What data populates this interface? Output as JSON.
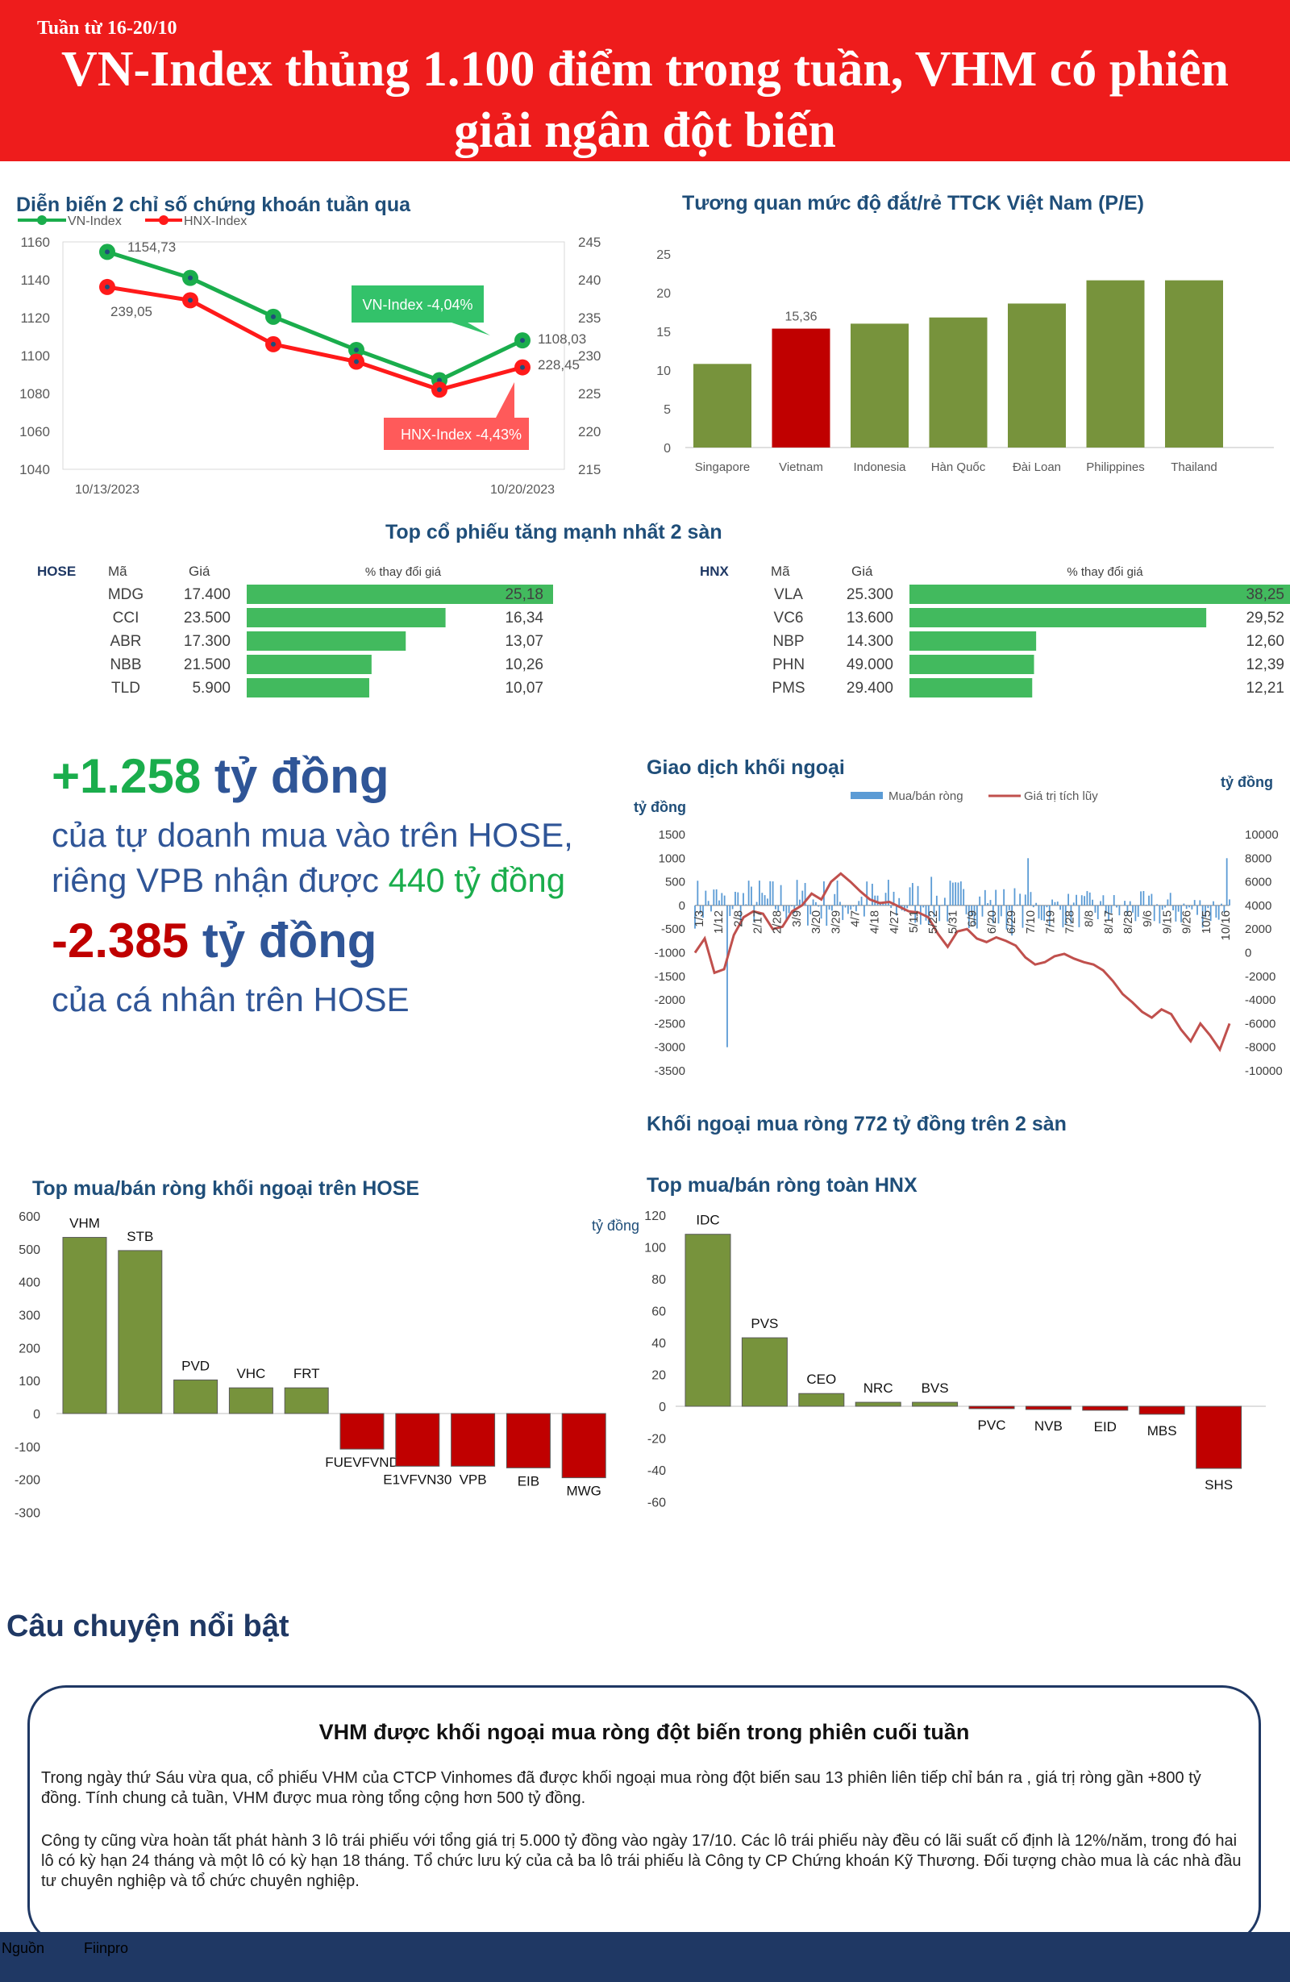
{
  "header": {
    "week": "Tuần từ 16-20/10",
    "title": "VN-Index thủng 1.100 điểm trong tuần, VHM có phiên giải ngân đột biến"
  },
  "index_chart": {
    "title": "Diễn biến 2 chỉ số chứng khoán tuần qua",
    "legend": [
      "VN-Index",
      "HNX-Index"
    ],
    "date_start": "10/13/2023",
    "date_end": "10/20/2023",
    "vn_start_label": "1154,73",
    "vn_end_label": "1108,03",
    "hnx_start_label": "239,05",
    "hnx_end_label": "228,45",
    "vn_callout": "VN-Index -4,04%",
    "hnx_callout": "HNX-Index -4,43%",
    "left_ticks": [
      "1160",
      "1140",
      "1120",
      "1100",
      "1080",
      "1060",
      "1040"
    ],
    "right_ticks": [
      "245",
      "240",
      "235",
      "230",
      "225",
      "220",
      "215"
    ]
  },
  "pe_chart": {
    "title": "Tương quan mức độ đắt/rẻ TTCK Việt Nam (P/E)",
    "highlight_label": "15,36",
    "ticks": [
      "25",
      "20",
      "15",
      "10",
      "5",
      "0"
    ]
  },
  "top_gainers": {
    "title": "Top cổ phiếu tăng mạnh nhất 2 sàn",
    "col_code": "Mã",
    "col_price": "Giá",
    "col_pct": "% thay đổi giá",
    "hose": {
      "label": "HOSE",
      "rows": [
        {
          "code": "MDG",
          "price": "17.400",
          "pct": "25,18",
          "value": 25.18
        },
        {
          "code": "CCI",
          "price": "23.500",
          "pct": "16,34",
          "value": 16.34
        },
        {
          "code": "ABR",
          "price": "17.300",
          "pct": "13,07",
          "value": 13.07
        },
        {
          "code": "NBB",
          "price": "21.500",
          "pct": "10,26",
          "value": 10.26
        },
        {
          "code": "TLD",
          "price": "5.900",
          "pct": "10,07",
          "value": 10.07
        }
      ]
    },
    "hnx": {
      "label": "HNX",
      "rows": [
        {
          "code": "VLA",
          "price": "25.300",
          "pct": "38,25",
          "value": 38.25
        },
        {
          "code": "VC6",
          "price": "13.600",
          "pct": "29,52",
          "value": 29.52
        },
        {
          "code": "NBP",
          "price": "14.300",
          "pct": "12,60",
          "value": 12.6
        },
        {
          "code": "PHN",
          "price": "49.000",
          "pct": "12,39",
          "value": 12.39
        },
        {
          "code": "PMS",
          "price": "29.400",
          "pct": "12,21",
          "value": 12.21
        }
      ]
    }
  },
  "highlights": {
    "prop_amount": "+1.258",
    "unit1": "tỷ đồng",
    "prop_line1": "của tự doanh mua vào trên HOSE,",
    "prop_line2_a": "riêng VPB nhận được ",
    "prop_line2_b": "440 tỷ đồng",
    "indiv_amount": "-2.385",
    "unit2": "tỷ đồng",
    "indiv_line": "của cá nhân trên HOSE"
  },
  "foreign_chart": {
    "title": "Giao dịch khối ngoại",
    "unit_left": "tỷ đồng",
    "unit_right": "tỷ đồng",
    "legend_bar": "Mua/bán ròng",
    "legend_line": "Giá trị tích lũy",
    "left_ticks": [
      "1500",
      "1000",
      "500",
      "0",
      "-500",
      "-1000",
      "-1500",
      "-2000",
      "-2500",
      "-3000",
      "-3500"
    ],
    "right_ticks": [
      "10000",
      "8000",
      "6000",
      "4000",
      "2000",
      "0",
      "-2000",
      "-4000",
      "-6000",
      "-8000",
      "-10000"
    ],
    "date_labels": [
      "1/3",
      "1/12",
      "2/8",
      "2/17",
      "2/28",
      "3/9",
      "3/20",
      "3/29",
      "4/7",
      "4/18",
      "4/27",
      "5/11",
      "5/22",
      "5/31",
      "6/9",
      "6/20",
      "6/29",
      "7/10",
      "7/19",
      "7/28",
      "8/8",
      "8/17",
      "8/28",
      "9/6",
      "9/15",
      "9/26",
      "10/5",
      "10/16"
    ],
    "subtitle": "Khối ngoại mua ròng 772 tỷ đồng trên 2 sàn"
  },
  "hose_foreign": {
    "title": "Top mua/bán ròng khối ngoại trên HOSE",
    "ticks": [
      "600",
      "500",
      "400",
      "300",
      "200",
      "100",
      "0",
      "-100",
      "-200",
      "-300"
    ]
  },
  "hnx_foreign": {
    "title": "Top mua/bán ròng toàn HNX",
    "unit": "tỷ đồng",
    "ticks": [
      "120",
      "100",
      "80",
      "60",
      "40",
      "20",
      "0",
      "-20",
      "-40",
      "-60"
    ]
  },
  "story": {
    "section_title": "Câu chuyện nổi bật",
    "headline": "VHM được khối ngoại mua ròng đột biến trong phiên cuối tuần",
    "para1": "Trong ngày thứ Sáu vừa qua, cổ phiếu VHM của CTCP Vinhomes đã được khối ngoại mua ròng đột biến sau 13 phiên liên tiếp chỉ bán ra , giá trị ròng gần +800 tỷ đồng. Tính chung cả tuần, VHM được mua ròng tổng cộng hơn 500 tỷ đồng.",
    "para2": "Công ty cũng vừa hoàn tất phát hành 3 lô trái phiếu với tổng giá trị 5.000 tỷ đồng vào ngày 17/10. Các lô trái phiếu này đều có lãi suất cố định là 12%/năm, trong đó hai lô có kỳ hạn 24 tháng và một lô có kỳ hạn 18 tháng. Tổ chức lưu ký của cả ba lô trái phiếu là Công ty CP Chứng khoán Kỹ Thương. Đối tượng chào mua là các nhà đầu tư chuyên nghiệp và tổ chức chuyên nghiệp."
  },
  "footer": {
    "source_label": "Nguồn",
    "source_value": "Fiinpro"
  },
  "colors": {
    "banner": "#ee1c1c",
    "vn_line": "#1aad4c",
    "hnx_line": "#ff1a1a",
    "bar_green": "#77933c",
    "bar_red": "#c00000",
    "navy": "#1f3864"
  },
  "chart_data": [
    {
      "type": "line",
      "title": "Diễn biến 2 chỉ số chứng khoán tuần qua",
      "x": [
        "10/13/2023",
        "10/16/2023",
        "10/17/2023",
        "10/18/2023",
        "10/19/2023",
        "10/20/2023"
      ],
      "series": [
        {
          "name": "VN-Index",
          "axis": "left",
          "values": [
            1154.73,
            1141,
            1120.5,
            1103,
            1087,
            1108.03
          ]
        },
        {
          "name": "HNX-Index",
          "axis": "right",
          "values": [
            239.05,
            237.3,
            231.5,
            229.2,
            225.5,
            228.45
          ]
        }
      ],
      "ylim_left": [
        1040,
        1160
      ],
      "ylim_right": [
        215,
        245
      ]
    },
    {
      "type": "bar",
      "title": "Tương quan mức độ đắt/rẻ TTCK Việt Nam (P/E)",
      "categories": [
        "Singapore",
        "Vietnam",
        "Indonesia",
        "Hàn Quốc",
        "Đài Loan",
        "Philippines",
        "Thailand"
      ],
      "values": [
        10.8,
        15.36,
        16,
        16.8,
        18.6,
        21.6,
        21.6
      ],
      "ylim": [
        0,
        25
      ]
    },
    {
      "type": "bar",
      "title": "Giao dịch khối ngoại",
      "series_note": "daily net buy/sell bars (left axis) and cumulative value line (right axis), Jan–Oct 2023",
      "ylim_left": [
        -3500,
        1500
      ],
      "ylim_right": [
        -10000,
        10000
      ]
    },
    {
      "type": "bar",
      "title": "Top mua/bán ròng khối ngoại trên HOSE",
      "categories": [
        "VHM",
        "STB",
        "PVD",
        "VHC",
        "FRT",
        "FUEVFVND",
        "E1VFVN30",
        "VPB",
        "EIB",
        "MWG"
      ],
      "values": [
        535,
        495,
        102,
        78,
        78,
        -108,
        -160,
        -160,
        -165,
        -195
      ],
      "ylim": [
        -300,
        600
      ]
    },
    {
      "type": "bar",
      "title": "Top mua/bán ròng toàn HNX",
      "categories": [
        "IDC",
        "PVS",
        "CEO",
        "NRC",
        "BVS",
        "PVC",
        "NVB",
        "EID",
        "MBS",
        "SHS"
      ],
      "values": [
        108,
        43,
        8,
        2.5,
        2.5,
        -1.5,
        -2,
        -2.5,
        -5,
        -39
      ],
      "ylim": [
        -60,
        120
      ]
    }
  ]
}
